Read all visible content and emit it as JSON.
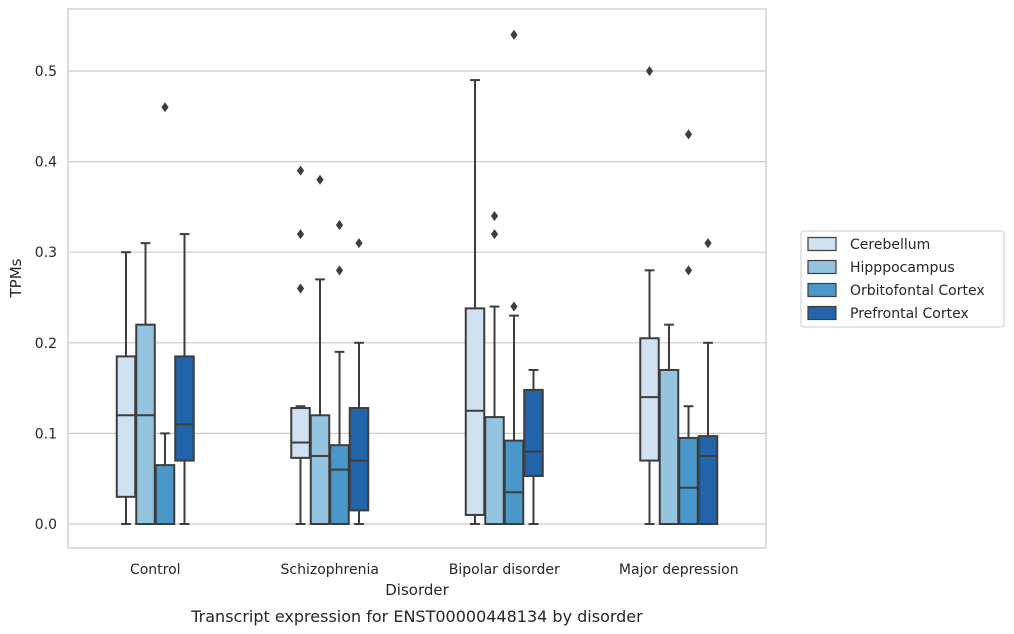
{
  "chart_data": {
    "type": "box",
    "title": "",
    "caption": "Transcript expression for ENST00000448134 by disorder",
    "xlabel": "Disorder",
    "ylabel": "TPMs",
    "ylim": [
      -0.025,
      0.568
    ],
    "yticks": [
      0.0,
      0.1,
      0.2,
      0.3,
      0.4,
      0.5
    ],
    "ytick_labels": [
      "0.0",
      "0.1",
      "0.2",
      "0.3",
      "0.4",
      "0.5"
    ],
    "grid": "horizontal",
    "legend_placement": "outside-right",
    "categories": [
      "Control",
      "Schizophrenia",
      "Bipolar disorder",
      "Major depression"
    ],
    "series": [
      {
        "name": "Cerebellum",
        "color": "#d0e1f2",
        "boxes": [
          {
            "whislo": 0.0,
            "q1": 0.03,
            "med": 0.12,
            "q3": 0.185,
            "whishi": 0.3,
            "fliers": []
          },
          {
            "whislo": 0.0,
            "q1": 0.073,
            "med": 0.09,
            "q3": 0.128,
            "whishi": 0.13,
            "fliers": [
              0.26,
              0.32,
              0.39
            ]
          },
          {
            "whislo": 0.0,
            "q1": 0.01,
            "med": 0.125,
            "q3": 0.238,
            "whishi": 0.49,
            "fliers": []
          },
          {
            "whislo": 0.0,
            "q1": 0.07,
            "med": 0.14,
            "q3": 0.205,
            "whishi": 0.28,
            "fliers": [
              0.5
            ]
          }
        ]
      },
      {
        "name": "Hipppocampus",
        "color": "#94c4df",
        "boxes": [
          {
            "whislo": 0.0,
            "q1": 0.0,
            "med": 0.12,
            "q3": 0.22,
            "whishi": 0.31,
            "fliers": []
          },
          {
            "whislo": 0.0,
            "q1": 0.0,
            "med": 0.075,
            "q3": 0.12,
            "whishi": 0.27,
            "fliers": [
              0.38
            ]
          },
          {
            "whislo": 0.0,
            "q1": 0.0,
            "med": 0.0,
            "q3": 0.118,
            "whishi": 0.24,
            "fliers": [
              0.32,
              0.34
            ]
          },
          {
            "whislo": 0.0,
            "q1": 0.0,
            "med": 0.0,
            "q3": 0.17,
            "whishi": 0.22,
            "fliers": []
          }
        ]
      },
      {
        "name": "Orbitofontal Cortex",
        "color": "#4a98c9",
        "boxes": [
          {
            "whislo": 0.0,
            "q1": 0.0,
            "med": 0.0,
            "q3": 0.065,
            "whishi": 0.1,
            "fliers": [
              0.46
            ]
          },
          {
            "whislo": 0.0,
            "q1": 0.0,
            "med": 0.06,
            "q3": 0.087,
            "whishi": 0.19,
            "fliers": [
              0.28,
              0.33
            ]
          },
          {
            "whislo": 0.0,
            "q1": 0.0,
            "med": 0.035,
            "q3": 0.092,
            "whishi": 0.23,
            "fliers": [
              0.24,
              0.54
            ]
          },
          {
            "whislo": 0.0,
            "q1": 0.0,
            "med": 0.04,
            "q3": 0.095,
            "whishi": 0.13,
            "fliers": [
              0.28,
              0.43
            ]
          }
        ]
      },
      {
        "name": "Prefrontal Cortex",
        "color": "#2264aa",
        "boxes": [
          {
            "whislo": 0.0,
            "q1": 0.07,
            "med": 0.11,
            "q3": 0.185,
            "whishi": 0.32,
            "fliers": []
          },
          {
            "whislo": 0.0,
            "q1": 0.015,
            "med": 0.07,
            "q3": 0.128,
            "whishi": 0.2,
            "fliers": [
              0.31
            ]
          },
          {
            "whislo": 0.0,
            "q1": 0.053,
            "med": 0.08,
            "q3": 0.148,
            "whishi": 0.17,
            "fliers": []
          },
          {
            "whislo": 0.0,
            "q1": 0.0,
            "med": 0.075,
            "q3": 0.097,
            "whishi": 0.2,
            "fliers": [
              0.31
            ]
          }
        ]
      }
    ],
    "colors": {
      "box_edge": "#3d3d3d",
      "grid": "#cccccc",
      "frame": "#c8c8c8"
    }
  }
}
